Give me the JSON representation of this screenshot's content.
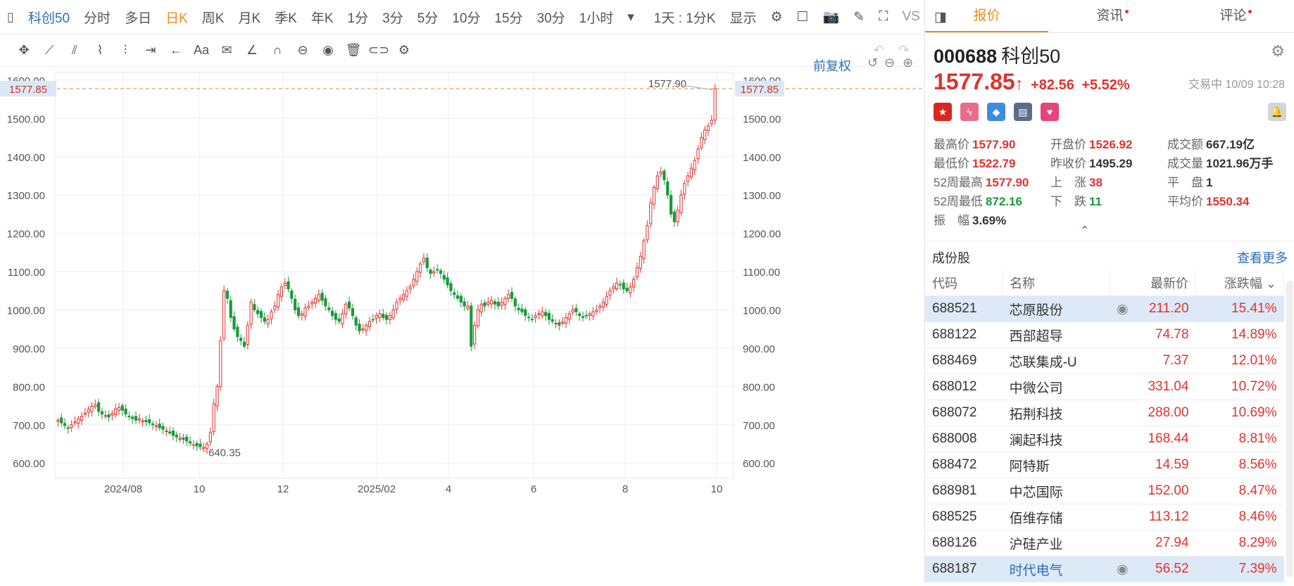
{
  "toolbar": {
    "title": "科创50",
    "periods": [
      "分时",
      "多日",
      "日K",
      "周K",
      "月K",
      "季K",
      "年K",
      "1分",
      "3分",
      "5分",
      "10分",
      "15分",
      "30分",
      "1小时"
    ],
    "active_period": "日K",
    "range_select": "1天 : 1分K",
    "display_label": "显示",
    "vs_label": "VS"
  },
  "drawbar": {
    "font_label": "Aa"
  },
  "chart": {
    "adjust_label": "前复权",
    "current_price": "1577.85",
    "high_label": "1577.90",
    "low_label": "640.35",
    "y_ticks": [
      "1600.00",
      "1500.00",
      "1400.00",
      "1300.00",
      "1200.00",
      "1100.00",
      "1000.00",
      "900.00",
      "800.00",
      "700.00",
      "600.00"
    ],
    "x_ticks": [
      "2024/08",
      "10",
      "12",
      "2025/02",
      "4",
      "6",
      "8",
      "10"
    ],
    "up_color": "#e0322f",
    "down_color": "#1a9a3a"
  },
  "chart_data": {
    "type": "candlestick",
    "ylim": [
      560,
      1620
    ],
    "x_range": [
      "2024/07",
      "2025/10"
    ],
    "closes": [
      712,
      705,
      698,
      690,
      700,
      708,
      715,
      722,
      730,
      740,
      748,
      752,
      735,
      728,
      724,
      720,
      730,
      742,
      745,
      738,
      728,
      722,
      716,
      712,
      715,
      710,
      708,
      705,
      700,
      698,
      692,
      688,
      684,
      678,
      672,
      668,
      665,
      662,
      658,
      652,
      648,
      645,
      643,
      641,
      650,
      680,
      755,
      800,
      920,
      1050,
      1030,
      980,
      950,
      930,
      920,
      905,
      960,
      1020,
      1000,
      990,
      980,
      970,
      975,
      995,
      1010,
      1040,
      1060,
      1070,
      1055,
      1030,
      1000,
      985,
      990,
      1005,
      1010,
      1020,
      1030,
      1040,
      1025,
      1010,
      1000,
      985,
      975,
      970,
      990,
      1015,
      1005,
      985,
      960,
      945,
      950,
      960,
      970,
      975,
      985,
      990,
      980,
      975,
      985,
      1000,
      1020,
      1030,
      1040,
      1050,
      1060,
      1080,
      1100,
      1120,
      1135,
      1110,
      1095,
      1100,
      1105,
      1095,
      1080,
      1065,
      1050,
      1040,
      1030,
      1020,
      1010,
      1010,
      905,
      960,
      1000,
      1015,
      1010,
      1020,
      1025,
      1015,
      1010,
      1020,
      1030,
      1040,
      1030,
      1010,
      1000,
      995,
      985,
      980,
      975,
      985,
      990,
      995,
      985,
      975,
      970,
      965,
      960,
      968,
      980,
      990,
      1000,
      995,
      985,
      980,
      985,
      990,
      995,
      1000,
      1010,
      1020,
      1035,
      1050,
      1060,
      1070,
      1065,
      1055,
      1050,
      1060,
      1080,
      1110,
      1140,
      1180,
      1220,
      1280,
      1320,
      1350,
      1360,
      1340,
      1300,
      1250,
      1230,
      1260,
      1300,
      1330,
      1350,
      1370,
      1390,
      1420,
      1450,
      1470,
      1480,
      1495,
      1577.85
    ],
    "stats": {
      "high": 1577.9,
      "low": 640.35,
      "last": 1577.85
    }
  },
  "tabs": [
    {
      "label": "报价",
      "active": true,
      "dot": false
    },
    {
      "label": "资讯",
      "active": false,
      "dot": true
    },
    {
      "label": "评论",
      "active": false,
      "dot": true
    }
  ],
  "quote": {
    "code": "000688",
    "name": "科创50",
    "price": "1577.85",
    "arrow": "↑",
    "change": "+82.56",
    "change_pct": "+5.52%",
    "status": "交易中 10/09 10:28"
  },
  "stats": [
    [
      {
        "label": "最高价",
        "value": "1577.90",
        "color": "red"
      },
      {
        "label": "开盘价",
        "value": "1526.92",
        "color": "red"
      },
      {
        "label": "成交额",
        "value": "667.19亿",
        "color": "dark"
      }
    ],
    [
      {
        "label": "最低价",
        "value": "1522.79",
        "color": "red"
      },
      {
        "label": "昨收价",
        "value": "1495.29",
        "color": "dark"
      },
      {
        "label": "成交量",
        "value": "1021.96万手",
        "color": "dark"
      }
    ],
    [
      {
        "label": "52周最高",
        "value": "1577.90",
        "color": "red"
      },
      {
        "label": "上　涨",
        "value": "38",
        "color": "red"
      },
      {
        "label": "平　盘",
        "value": "1",
        "color": "dark"
      }
    ],
    [
      {
        "label": "52周最低",
        "value": "872.16",
        "color": "green"
      },
      {
        "label": "下　跌",
        "value": "11",
        "color": "green"
      },
      {
        "label": "平均价",
        "value": "1550.34",
        "color": "red"
      }
    ],
    [
      {
        "label": "振　幅",
        "value": "3.69%",
        "color": "dark"
      }
    ]
  ],
  "components": {
    "title": "成份股",
    "more": "查看更多",
    "headers": [
      "代码",
      "名称",
      "最新价",
      "涨跌幅"
    ],
    "rows": [
      {
        "code": "688521",
        "name": "芯原股份",
        "price": "211.20",
        "pct": "15.41%",
        "hl": true,
        "eye": true
      },
      {
        "code": "688122",
        "name": "西部超导",
        "price": "74.78",
        "pct": "14.89%",
        "hl": false,
        "eye": false
      },
      {
        "code": "688469",
        "name": "芯联集成-U",
        "price": "7.37",
        "pct": "12.01%",
        "hl": false,
        "eye": false
      },
      {
        "code": "688012",
        "name": "中微公司",
        "price": "331.04",
        "pct": "10.72%",
        "hl": false,
        "eye": false
      },
      {
        "code": "688072",
        "name": "拓荆科技",
        "price": "288.00",
        "pct": "10.69%",
        "hl": false,
        "eye": false
      },
      {
        "code": "688008",
        "name": "澜起科技",
        "price": "168.44",
        "pct": "8.81%",
        "hl": false,
        "eye": false
      },
      {
        "code": "688472",
        "name": "阿特斯",
        "price": "14.59",
        "pct": "8.56%",
        "hl": false,
        "eye": false
      },
      {
        "code": "688981",
        "name": "中芯国际",
        "price": "152.00",
        "pct": "8.47%",
        "hl": false,
        "eye": false
      },
      {
        "code": "688525",
        "name": "佰维存储",
        "price": "113.12",
        "pct": "8.46%",
        "hl": false,
        "eye": false
      },
      {
        "code": "688126",
        "name": "沪硅产业",
        "price": "27.94",
        "pct": "8.29%",
        "hl": false,
        "eye": false
      },
      {
        "code": "688187",
        "name": "时代电气",
        "price": "56.52",
        "pct": "7.39%",
        "hl": true,
        "eye": true
      }
    ]
  }
}
